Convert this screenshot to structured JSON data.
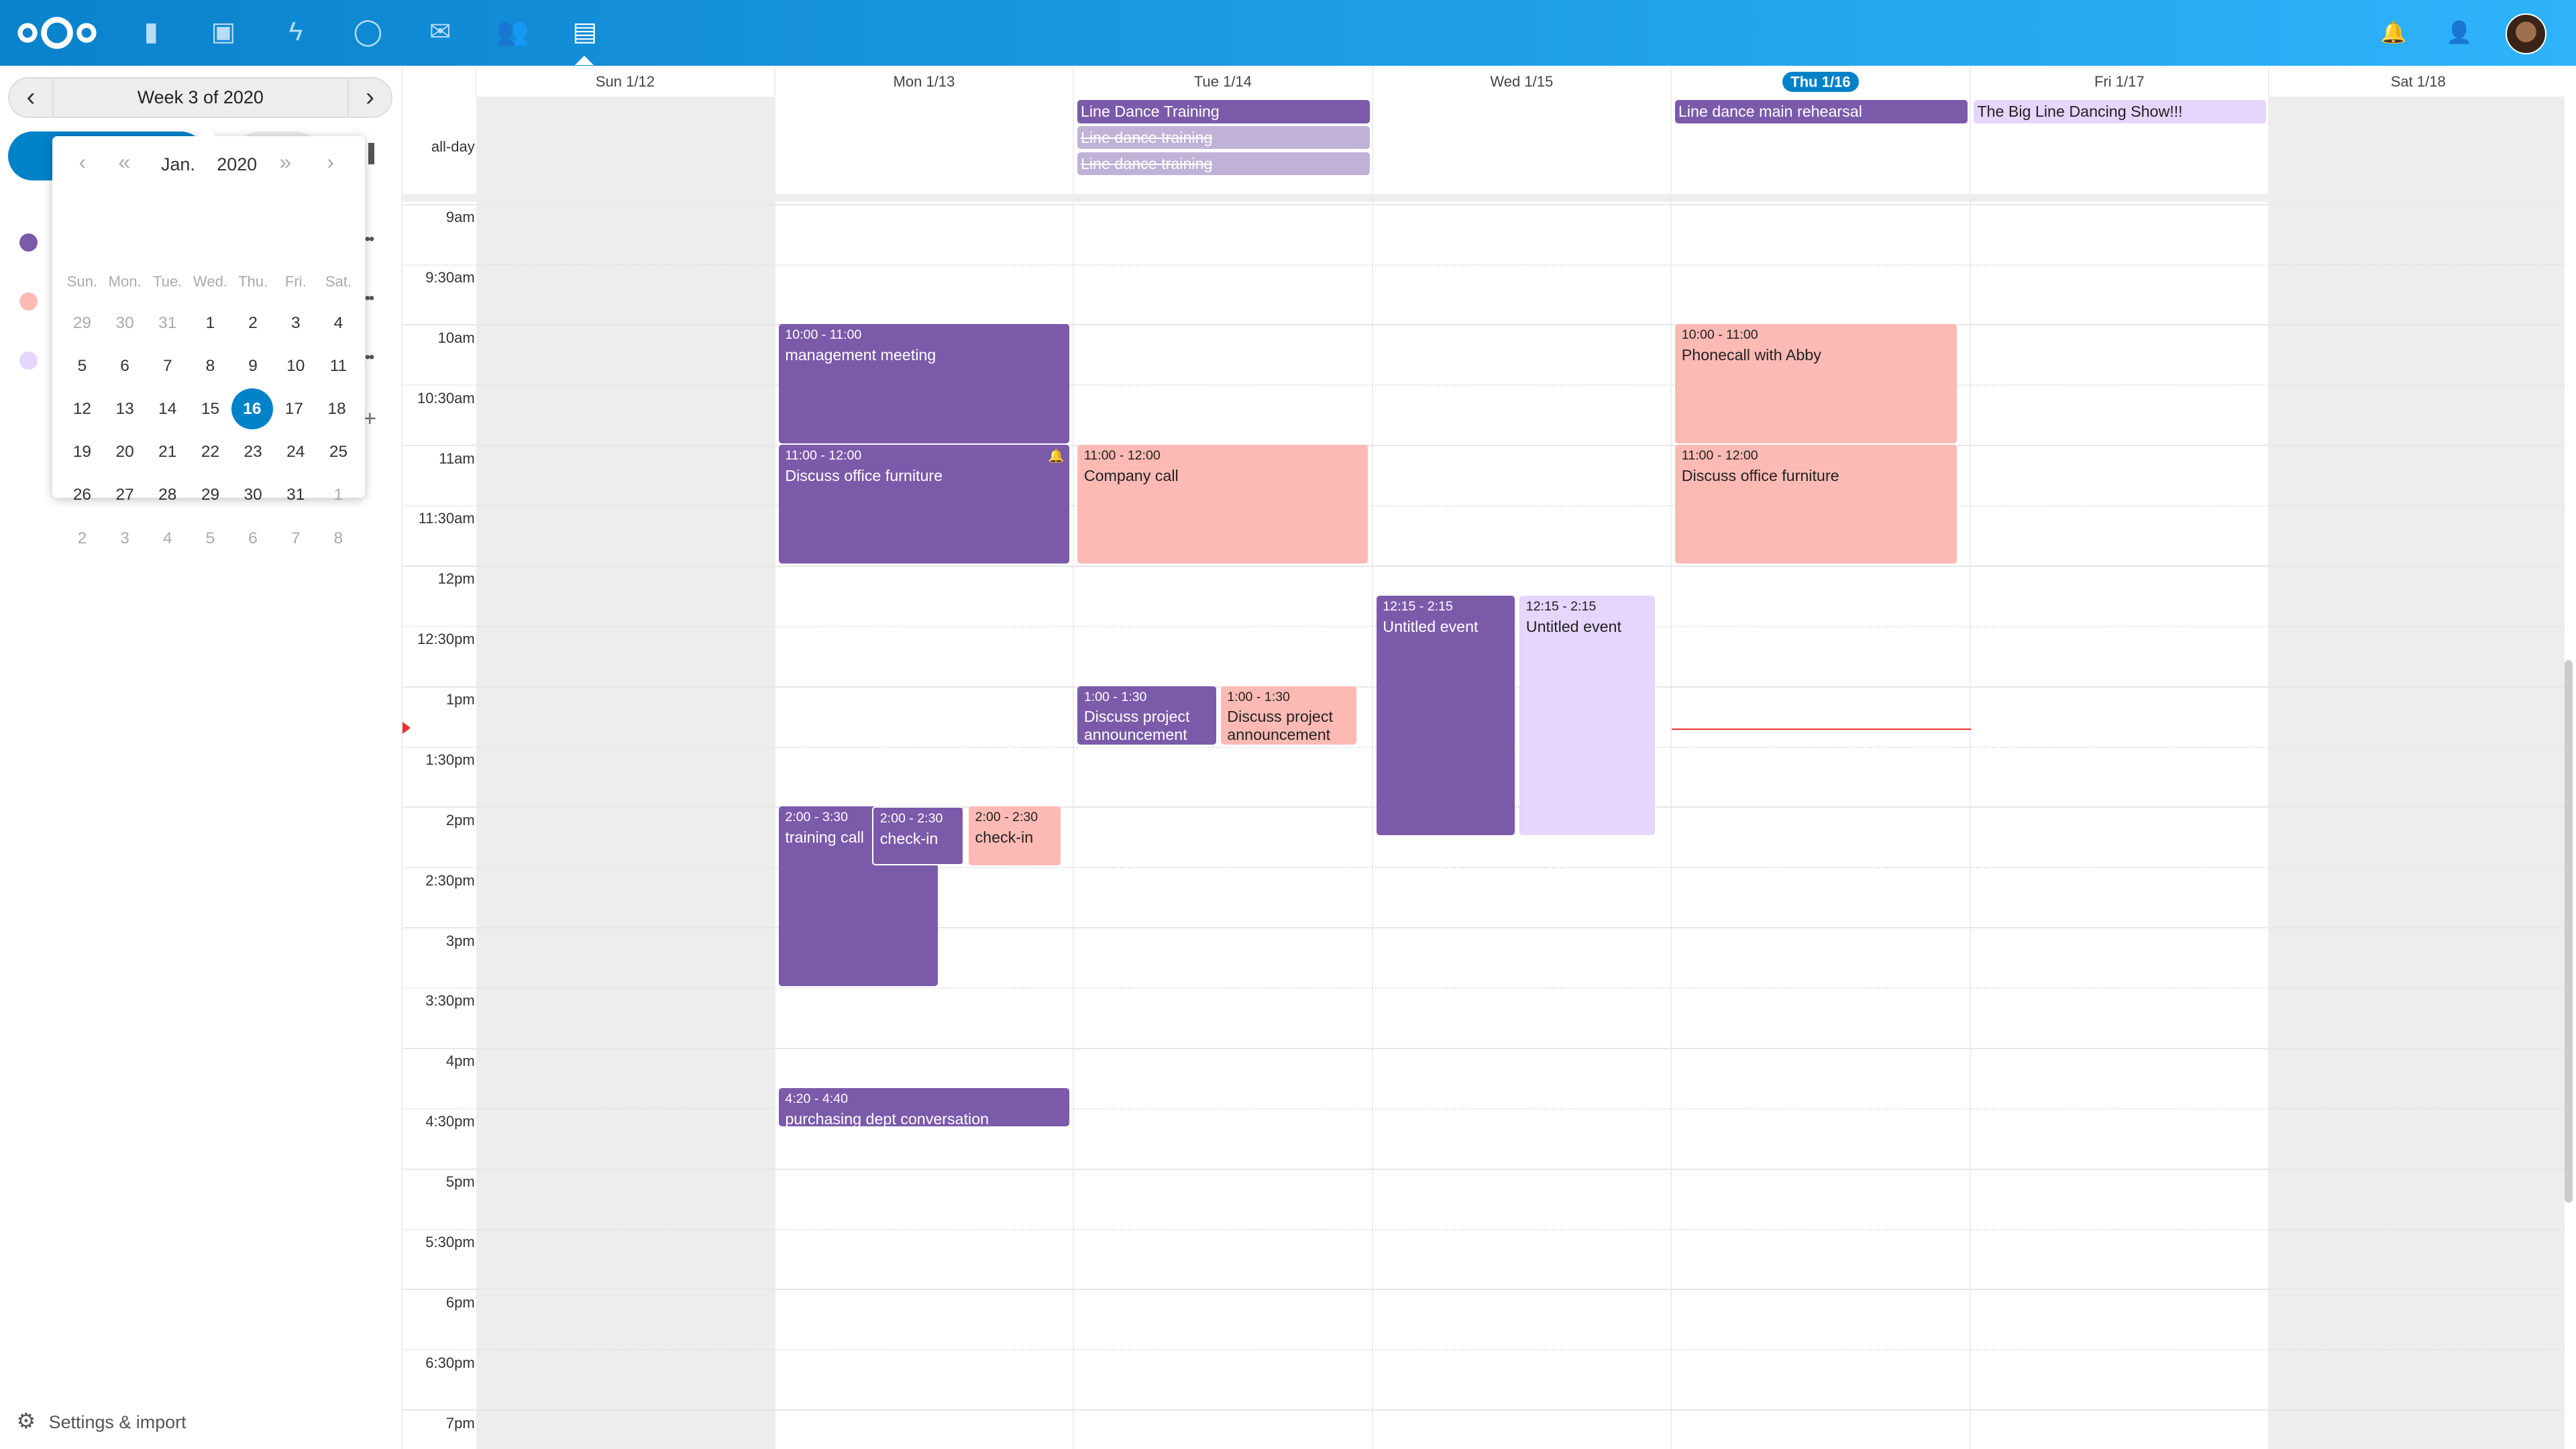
{
  "colors": {
    "header": "#0082c9",
    "purple": "#7b5aaa",
    "pink": "#fdbab4",
    "lavender": "#e6d5fd",
    "faded": "#c0b2d6",
    "now": "#e9322d"
  },
  "header": {
    "apps": [
      {
        "icon": "files-icon"
      },
      {
        "icon": "photos-icon"
      },
      {
        "icon": "activity-icon"
      },
      {
        "icon": "talk-icon"
      },
      {
        "icon": "mail-icon"
      },
      {
        "icon": "contacts-icon"
      },
      {
        "icon": "calendar-icon",
        "active": true
      }
    ],
    "right": [
      {
        "icon": "notifications-icon"
      },
      {
        "icon": "contacts-menu-icon"
      },
      {
        "icon": "avatar"
      }
    ]
  },
  "sidebar": {
    "week_label": "Week 3 of 2020",
    "settings_label": "Settings & import",
    "calendars": [
      {
        "color": "#7b5aaa"
      },
      {
        "color": "#fdbab4"
      },
      {
        "color": "#e6d5fd"
      }
    ],
    "datepicker": {
      "month": "Jan.",
      "year": "2020",
      "weekdays": [
        "Sun.",
        "Mon.",
        "Tue.",
        "Wed.",
        "Thu.",
        "Fri.",
        "Sat."
      ],
      "weeks": [
        [
          "29",
          "30",
          "31",
          "1",
          "2",
          "3",
          "4"
        ],
        [
          "5",
          "6",
          "7",
          "8",
          "9",
          "10",
          "11"
        ],
        [
          "12",
          "13",
          "14",
          "15",
          "16",
          "17",
          "18"
        ],
        [
          "19",
          "20",
          "21",
          "22",
          "23",
          "24",
          "25"
        ],
        [
          "26",
          "27",
          "28",
          "29",
          "30",
          "31",
          "1"
        ],
        [
          "2",
          "3",
          "4",
          "5",
          "6",
          "7",
          "8"
        ]
      ],
      "selected": "16"
    }
  },
  "calendar": {
    "allday_label": "all-day",
    "days": [
      {
        "label": "Sun 1/12",
        "weekend": true
      },
      {
        "label": "Mon 1/13"
      },
      {
        "label": "Tue 1/14"
      },
      {
        "label": "Wed 1/15"
      },
      {
        "label": "Thu 1/16",
        "today": true
      },
      {
        "label": "Fri 1/17"
      },
      {
        "label": "Sat 1/18",
        "weekend": true
      }
    ],
    "times": [
      "9am",
      "9:30am",
      "10am",
      "10:30am",
      "11am",
      "11:30am",
      "12pm",
      "12:30pm",
      "1pm",
      "1:30pm",
      "2pm",
      "2:30pm",
      "3pm",
      "3:30pm",
      "4pm",
      "4:30pm",
      "5pm",
      "5:30pm",
      "6pm",
      "6:30pm",
      "7pm"
    ],
    "current_time": "13:21",
    "allday_events": [
      {
        "title": "Line Dance Training",
        "day": 2,
        "color": "#7b5aaa",
        "text": "#fff"
      },
      {
        "title": "Line dance training",
        "day": 2,
        "color": "#c0b2d6",
        "text": "#fff",
        "cancelled": true
      },
      {
        "title": "Line dance training",
        "day": 2,
        "color": "#c0b2d6",
        "text": "#fff",
        "cancelled": true
      },
      {
        "title": "Line dance main rehearsal",
        "day": 4,
        "color": "#7b5aaa",
        "text": "#fff"
      },
      {
        "title": "The Big Line Dancing Show!!!",
        "day": 5,
        "color": "#e6d5fd",
        "text": "#222"
      }
    ],
    "events": [
      {
        "time": "10:00 - 11:00",
        "title": "management meeting",
        "start": "10:00",
        "end": "11:00",
        "day": 1,
        "color": "#7b5aaa",
        "text": "#fff"
      },
      {
        "time": "11:00 - 12:00",
        "title": "Discuss office furniture",
        "start": "11:00",
        "end": "12:00",
        "day": 1,
        "color": "#7b5aaa",
        "text": "#fff",
        "alarm": true
      },
      {
        "time": "2:00 - 3:30",
        "title": "training call",
        "start": "14:00",
        "end": "15:30",
        "day": 1,
        "color": "#7b5aaa",
        "text": "#fff"
      },
      {
        "time": "2:00 - 2:30",
        "title": "check-in",
        "start": "14:00",
        "end": "14:30",
        "day": 1,
        "color": "#7b5aaa",
        "text": "#fff"
      },
      {
        "time": "2:00 - 2:30",
        "title": "check-in",
        "start": "14:00",
        "end": "14:30",
        "day": 1,
        "color": "#fdbab4",
        "text": "#222"
      },
      {
        "time": "4:20 - 4:40",
        "title": "purchasing dept conversation",
        "start": "16:20",
        "end": "16:40",
        "day": 1,
        "color": "#7b5aaa",
        "text": "#fff"
      },
      {
        "time": "11:00 - 12:00",
        "title": "Company call",
        "start": "11:00",
        "end": "12:00",
        "day": 2,
        "color": "#fdbab4",
        "text": "#222"
      },
      {
        "time": "1:00 - 1:30",
        "title": "Discuss project announcement",
        "start": "13:00",
        "end": "13:30",
        "day": 2,
        "color": "#7b5aaa",
        "text": "#fff"
      },
      {
        "time": "1:00 - 1:30",
        "title": "Discuss project announcement",
        "start": "13:00",
        "end": "13:30",
        "day": 2,
        "color": "#fdbab4",
        "text": "#222"
      },
      {
        "time": "12:15 - 2:15",
        "title": "Untitled event",
        "start": "12:15",
        "end": "14:15",
        "day": 3,
        "color": "#7b5aaa",
        "text": "#fff"
      },
      {
        "time": "12:15 - 2:15",
        "title": "Untitled event",
        "start": "12:15",
        "end": "14:15",
        "day": 3,
        "color": "#e6d5fd",
        "text": "#222"
      },
      {
        "time": "10:00 - 11:00",
        "title": "Phonecall with Abby",
        "start": "10:00",
        "end": "11:00",
        "day": 4,
        "color": "#fdbab4",
        "text": "#222"
      },
      {
        "time": "11:00 - 12:00",
        "title": "Discuss office furniture",
        "start": "11:00",
        "end": "12:00",
        "day": 4,
        "color": "#fdbab4",
        "text": "#222"
      }
    ]
  }
}
